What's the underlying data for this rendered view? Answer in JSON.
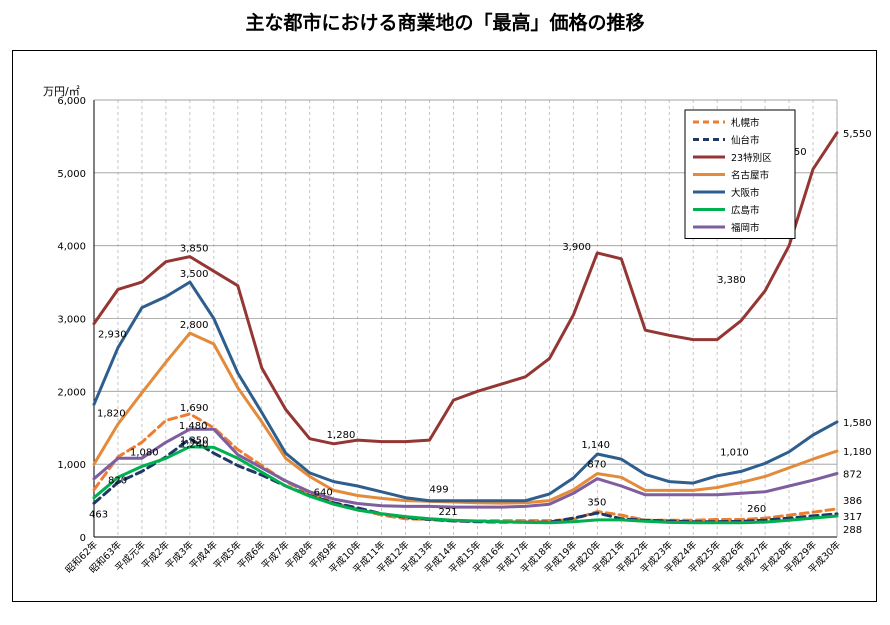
{
  "title": "主な都市における商業地の「最高」価格の推移",
  "chart_data": {
    "type": "line",
    "unit_label": "万円/㎡",
    "ylim": [
      0,
      6000
    ],
    "yticks": [
      "0",
      "1,000",
      "2,000",
      "3,000",
      "4,000",
      "5,000",
      "6,000"
    ],
    "grid": "horizontal solid, vertical dashed",
    "legend_position": "top-right",
    "categories": [
      "昭和62年",
      "昭和63年",
      "平成元年",
      "平成2年",
      "平成3年",
      "平成4年",
      "平成5年",
      "平成6年",
      "平成7年",
      "平成8年",
      "平成9年",
      "平成10年",
      "平成11年",
      "平成12年",
      "平成13年",
      "平成14年",
      "平成15年",
      "平成16年",
      "平成17年",
      "平成18年",
      "平成19年",
      "平成20年",
      "平成21年",
      "平成22年",
      "平成23年",
      "平成24年",
      "平成25年",
      "平成26年",
      "平成27年",
      "平成28年",
      "平成29年",
      "平成30年"
    ],
    "series": [
      {
        "name": "札幌市",
        "color": "#ED7D31",
        "dash": true,
        "values": [
          650,
          1100,
          1300,
          1600,
          1690,
          1500,
          1200,
          980,
          760,
          600,
          470,
          380,
          300,
          250,
          240,
          221,
          220,
          225,
          225,
          225,
          240,
          350,
          300,
          230,
          230,
          230,
          240,
          240,
          260,
          300,
          340,
          386
        ]
      },
      {
        "name": "仙台市",
        "color": "#1F3864",
        "dash": true,
        "values": [
          463,
          750,
          900,
          1100,
          1350,
          1150,
          980,
          850,
          700,
          570,
          470,
          400,
          320,
          270,
          240,
          221,
          210,
          205,
          205,
          205,
          260,
          330,
          250,
          230,
          220,
          210,
          210,
          215,
          230,
          260,
          290,
          317
        ]
      },
      {
        "name": "23特別区",
        "color": "#943634",
        "dash": false,
        "values": [
          2930,
          3400,
          3500,
          3780,
          3850,
          3650,
          3450,
          2320,
          1750,
          1350,
          1280,
          1330,
          1310,
          1310,
          1330,
          1880,
          2000,
          2100,
          2200,
          2450,
          3050,
          3900,
          3820,
          2840,
          2770,
          2710,
          2710,
          2970,
          3380,
          4000,
          5050,
          5550
        ]
      },
      {
        "name": "名古屋市",
        "color": "#E38B3A",
        "dash": false,
        "values": [
          1000,
          1550,
          1980,
          2400,
          2800,
          2650,
          2050,
          1580,
          1080,
          830,
          640,
          570,
          530,
          500,
          490,
          480,
          470,
          465,
          470,
          500,
          650,
          870,
          820,
          640,
          640,
          640,
          680,
          750,
          830,
          950,
          1070,
          1180
        ]
      },
      {
        "name": "大阪市",
        "color": "#2E5E8E",
        "dash": false,
        "values": [
          1820,
          2600,
          3150,
          3300,
          3500,
          3000,
          2250,
          1710,
          1150,
          880,
          760,
          700,
          620,
          540,
          499,
          499,
          499,
          499,
          499,
          590,
          810,
          1140,
          1070,
          860,
          760,
          740,
          840,
          900,
          1010,
          1170,
          1400,
          1580
        ]
      },
      {
        "name": "広島市",
        "color": "#00B050",
        "dash": false,
        "values": [
          540,
          820,
          970,
          1080,
          1240,
          1230,
          1080,
          890,
          700,
          560,
          450,
          370,
          320,
          280,
          250,
          230,
          220,
          210,
          200,
          195,
          210,
          235,
          235,
          215,
          200,
          195,
          195,
          195,
          205,
          230,
          260,
          288
        ]
      },
      {
        "name": "福岡市",
        "color": "#7E5E9E",
        "dash": false,
        "values": [
          800,
          1080,
          1080,
          1300,
          1480,
          1480,
          1130,
          950,
          770,
          620,
          520,
          460,
          430,
          420,
          420,
          410,
          410,
          410,
          420,
          450,
          600,
          800,
          700,
          580,
          580,
          580,
          580,
          600,
          620,
          700,
          780,
          872
        ]
      }
    ],
    "annotations": [
      {
        "text": "2,930",
        "cat": 0,
        "value": 2930,
        "dx": 4,
        "dy": 14
      },
      {
        "text": "3,850",
        "cat": 4,
        "value": 3850,
        "dx": -10,
        "dy": -5
      },
      {
        "text": "3,500",
        "cat": 4,
        "value": 3500,
        "dx": -10,
        "dy": -5
      },
      {
        "text": "2,800",
        "cat": 4,
        "value": 2800,
        "dx": -10,
        "dy": -5
      },
      {
        "text": "1,820",
        "cat": 0,
        "value": 1820,
        "dx": 3,
        "dy": 12
      },
      {
        "text": "1,690",
        "cat": 4,
        "value": 1690,
        "dx": -10,
        "dy": -3
      },
      {
        "text": "1,480",
        "cat": 4,
        "value": 1480,
        "dx": -11,
        "dy": 0
      },
      {
        "text": "1,350",
        "cat": 4,
        "value": 1350,
        "dx": -10,
        "dy": 5
      },
      {
        "text": "1,240",
        "cat": 4,
        "value": 1240,
        "dx": -10,
        "dy": 1
      },
      {
        "text": "1,080",
        "cat": 1,
        "value": 1080,
        "dx": 12,
        "dy": -3
      },
      {
        "text": "820",
        "cat": 0,
        "value": 820,
        "dx": 14,
        "dy": 6
      },
      {
        "text": "463",
        "cat": 0,
        "value": 463,
        "dx": -5,
        "dy": 14
      },
      {
        "text": "1,280",
        "cat": 10,
        "value": 1280,
        "dx": -7,
        "dy": -6
      },
      {
        "text": "640",
        "cat": 10,
        "value": 640,
        "dx": -20,
        "dy": 5
      },
      {
        "text": "499",
        "cat": 14,
        "value": 499,
        "dx": 0,
        "dy": -8
      },
      {
        "text": "221",
        "cat": 15,
        "value": 221,
        "dx": -15,
        "dy": -6
      },
      {
        "text": "3,900",
        "cat": 21,
        "value": 3900,
        "dx": -35,
        "dy": -3
      },
      {
        "text": "1,140",
        "cat": 21,
        "value": 1140,
        "dx": -16,
        "dy": -6
      },
      {
        "text": "870",
        "cat": 21,
        "value": 870,
        "dx": -10,
        "dy": -6
      },
      {
        "text": "350",
        "cat": 21,
        "value": 350,
        "dx": -10,
        "dy": -6
      },
      {
        "text": "3,380",
        "cat": 28,
        "value": 3380,
        "dx": -48,
        "dy": -8
      },
      {
        "text": "1,010",
        "cat": 28,
        "value": 1010,
        "dx": -45,
        "dy": -8
      },
      {
        "text": "260",
        "cat": 28,
        "value": 260,
        "dx": -18,
        "dy": -6
      },
      {
        "text": "5,050",
        "cat": 30,
        "value": 5050,
        "dx": -35,
        "dy": -14
      },
      {
        "text": "5,550",
        "cat": 31,
        "value": 5550,
        "dx": 6,
        "dy": 4
      },
      {
        "text": "1,580",
        "cat": 31,
        "value": 1580,
        "dx": 6,
        "dy": 4
      },
      {
        "text": "1,180",
        "cat": 31,
        "value": 1180,
        "dx": 6,
        "dy": 4
      },
      {
        "text": "872",
        "cat": 31,
        "value": 872,
        "dx": 6,
        "dy": 4
      },
      {
        "text": "386",
        "cat": 31,
        "value": 386,
        "dx": 6,
        "dy": -5
      },
      {
        "text": "317",
        "cat": 31,
        "value": 317,
        "dx": 6,
        "dy": 6
      },
      {
        "text": "288",
        "cat": 31,
        "value": 288,
        "dx": 6,
        "dy": 17
      }
    ]
  }
}
